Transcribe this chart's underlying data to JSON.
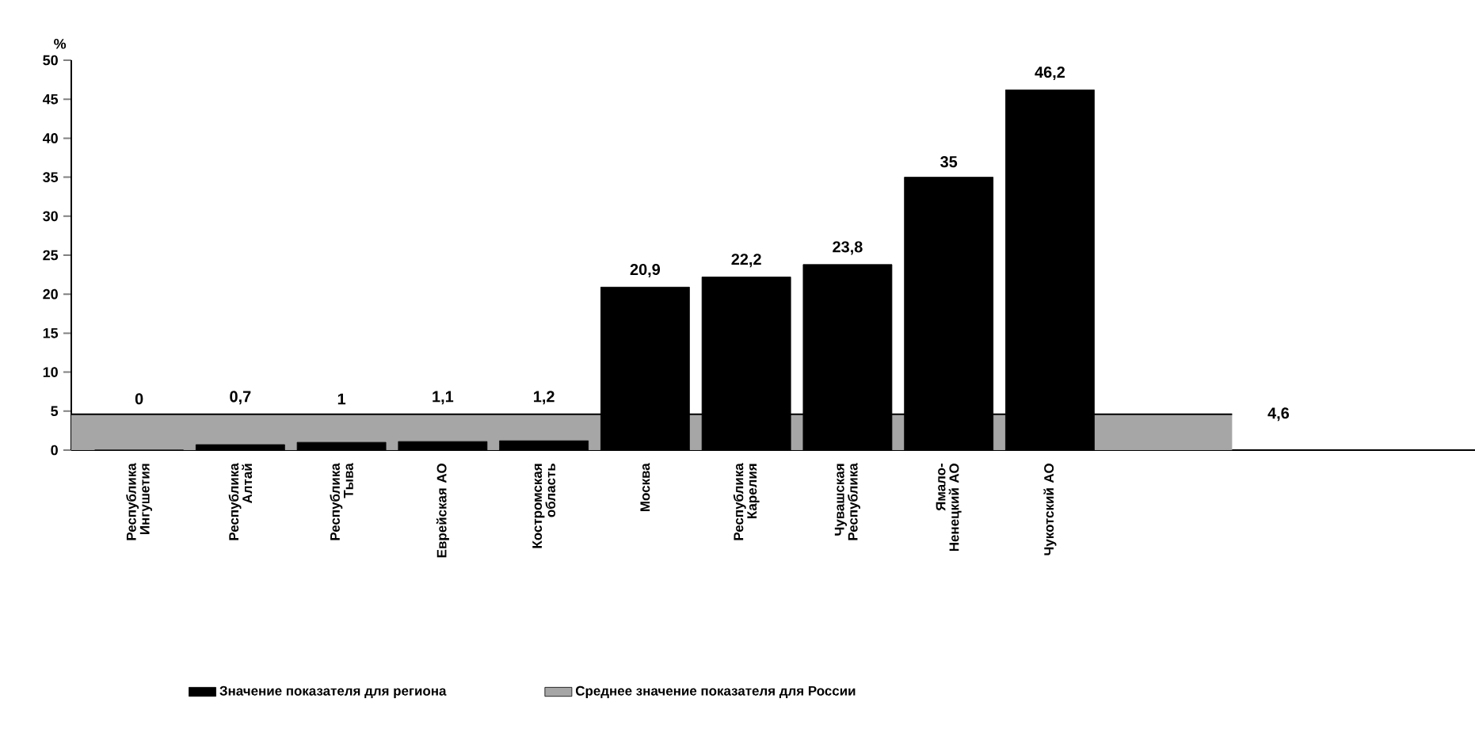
{
  "chart_data": {
    "type": "bar",
    "ylabel": "%",
    "categories": [
      "Республика Ингушетия",
      "Республика Алтай",
      "Республика Тыва",
      "Еврейская АО",
      "Костромская область",
      "Москва",
      "Республика Карелия",
      "Чувашская Республика",
      "Ямало-Ненецкий АО",
      "Чукотский АО"
    ],
    "series": [
      {
        "name": "Значение показателя для региона",
        "color": "#000000",
        "values": [
          0,
          0.7,
          1,
          1.1,
          1.2,
          20.9,
          22.2,
          23.8,
          35,
          46.2
        ],
        "value_labels": [
          "0",
          "0,7",
          "1",
          "1,1",
          "1,2",
          "20,9",
          "22,2",
          "23,8",
          "35",
          "46,2"
        ]
      }
    ],
    "ylim": [
      0,
      50
    ],
    "yticks": [
      0,
      5,
      10,
      15,
      20,
      25,
      30,
      35,
      40,
      45,
      50
    ],
    "bands": [
      {
        "axis": "y",
        "from": 0,
        "to": 4.6,
        "label": "Среднее значение показателя для России",
        "color": "#a6a6a6"
      }
    ],
    "ref_lines": [
      {
        "axis": "y",
        "value": 4.6,
        "label": "4,6",
        "color": "#000000"
      }
    ],
    "legend": "bottom",
    "grid": false
  }
}
